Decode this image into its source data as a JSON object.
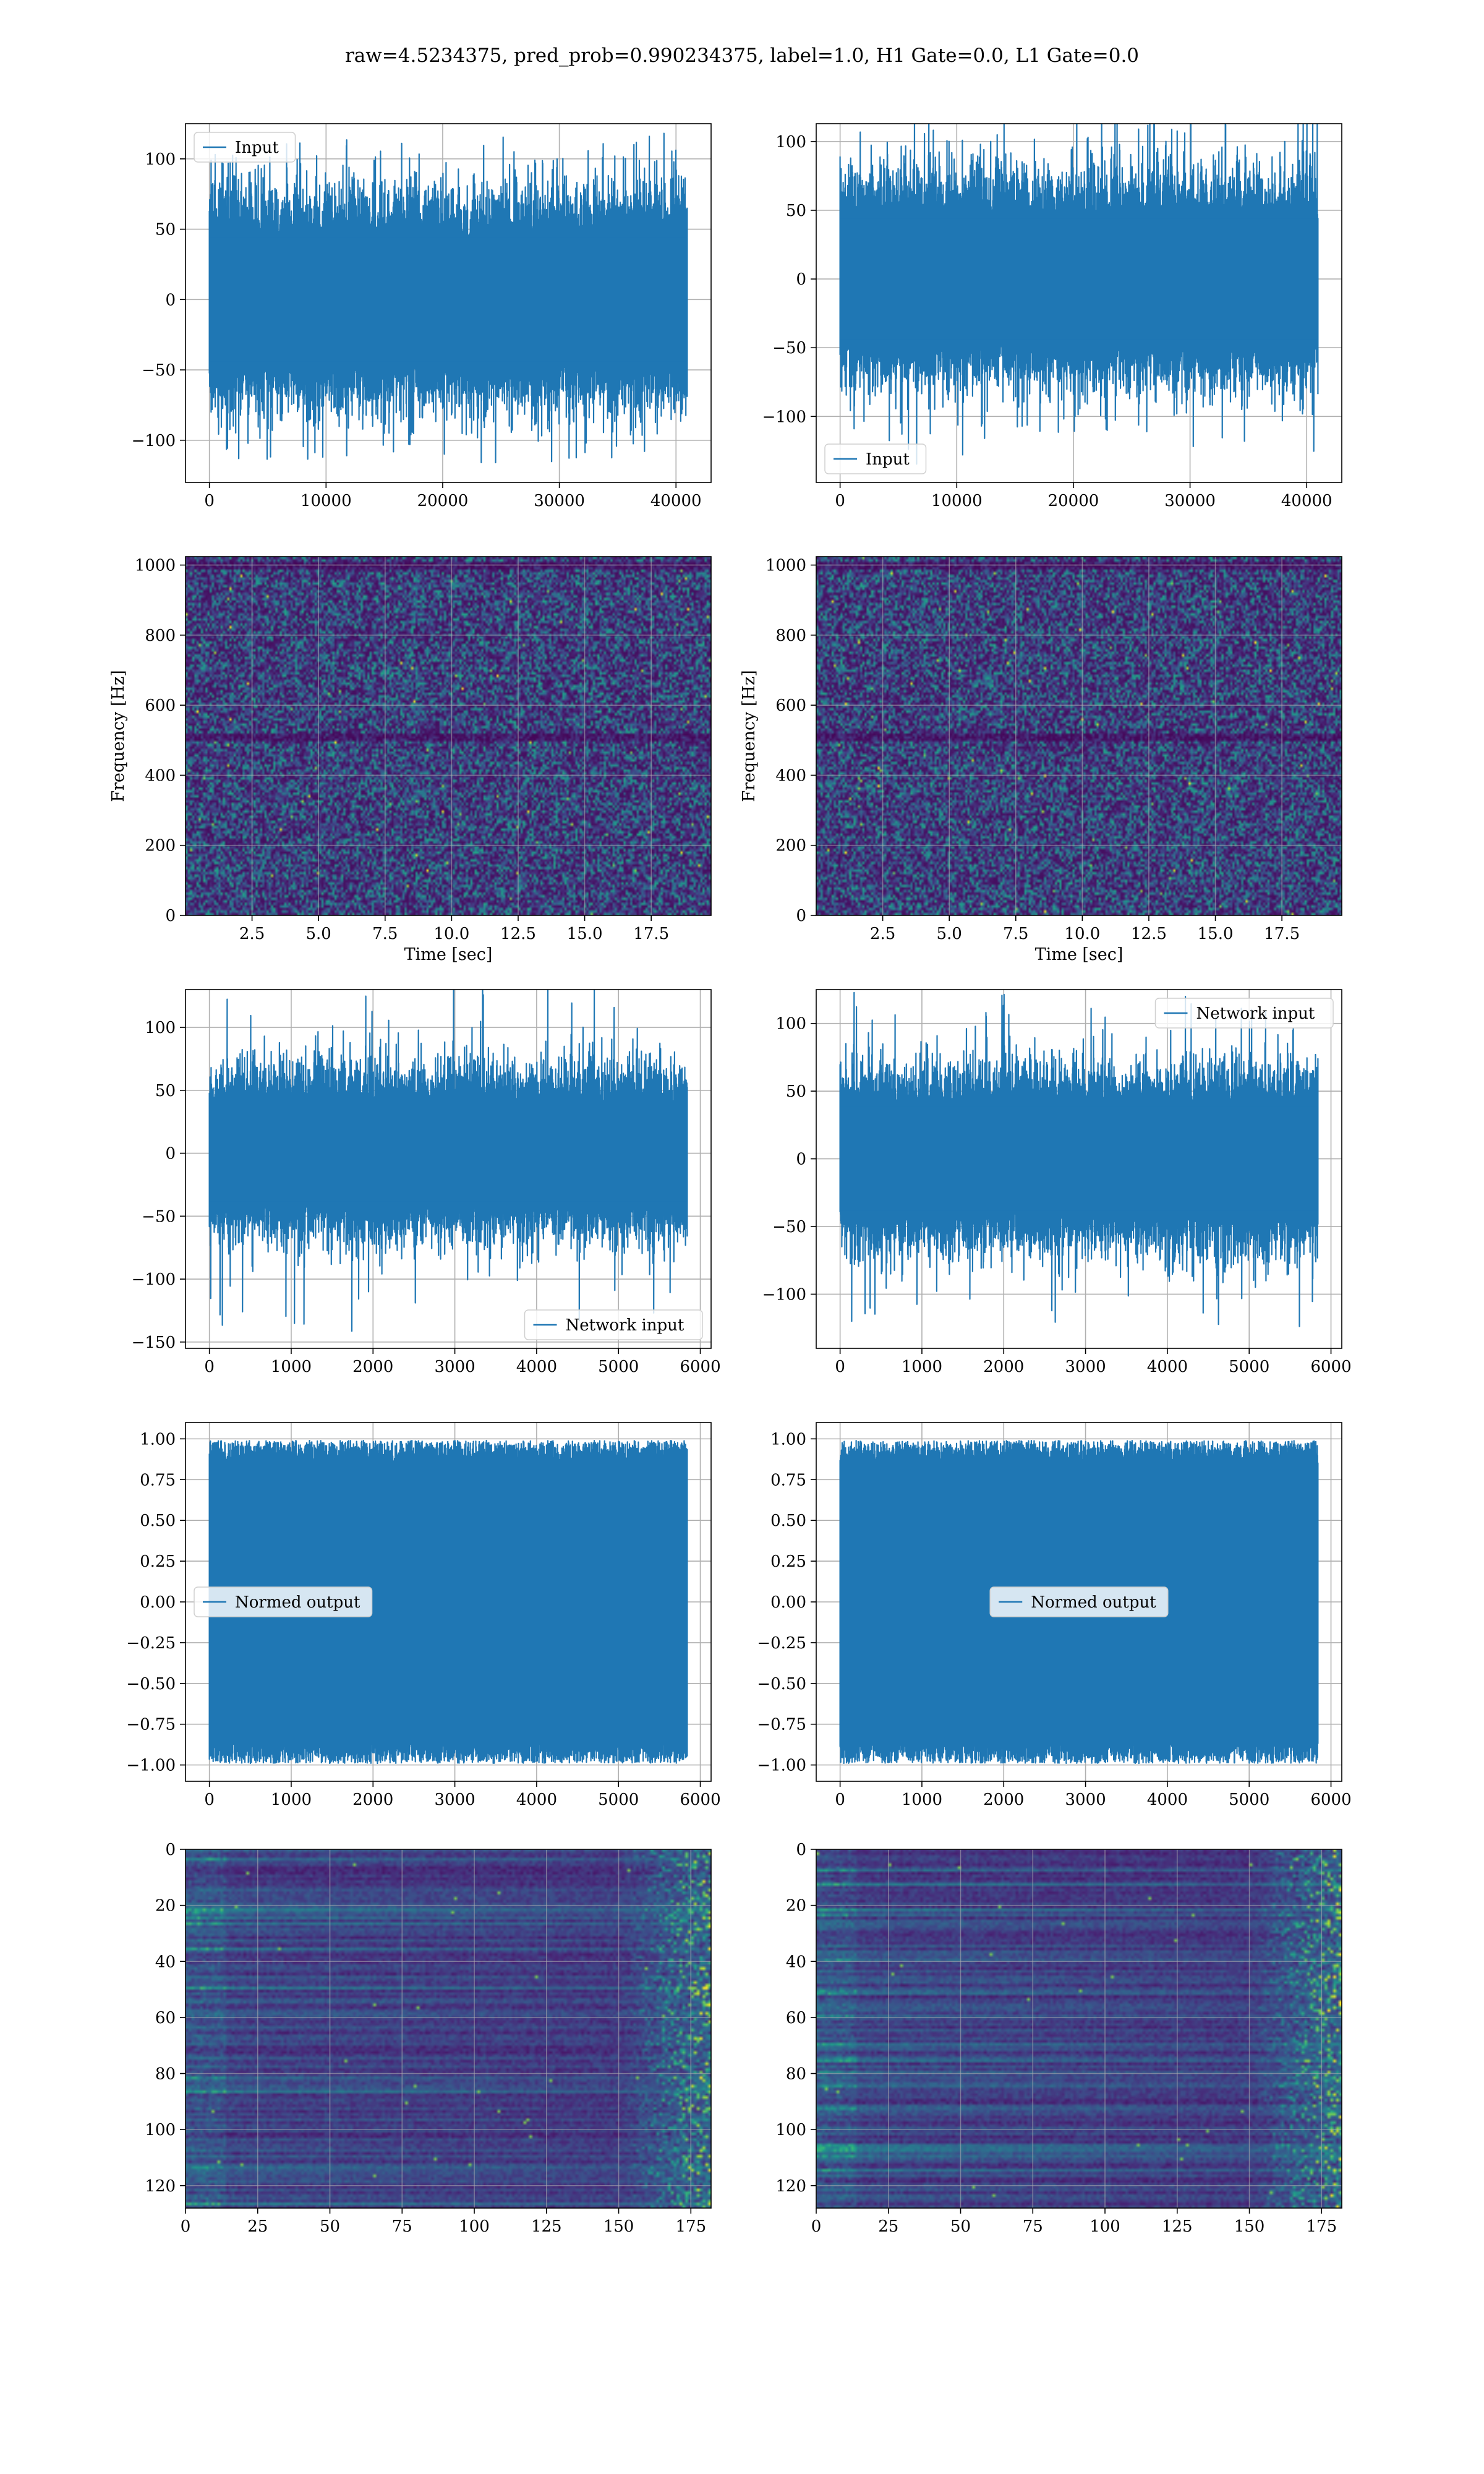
{
  "figure": {
    "suptitle": "raw=4.5234375, pred_prob=0.990234375, label=1.0, H1 Gate=0.0, L1 Gate=0.0"
  },
  "colors": {
    "line": "#1f77b4",
    "grid": "#b0b0b0"
  },
  "chart_data": [
    {
      "id": "input-h1",
      "type": "line",
      "series": [
        {
          "name": "Input",
          "kind": "noise",
          "length": 40960,
          "amplitude_typ": 40,
          "amplitude_peak": 118
        }
      ],
      "xlim": [
        -2048,
        43008
      ],
      "ylim": [
        -130,
        125
      ],
      "xticks": [
        0,
        10000,
        20000,
        30000,
        40000
      ],
      "yticks": [
        -100,
        -50,
        0,
        50,
        100
      ],
      "xlabel": "",
      "ylabel": "",
      "legend": "upper-left",
      "grid": true
    },
    {
      "id": "input-l1",
      "type": "line",
      "series": [
        {
          "name": "Input",
          "kind": "noise",
          "length": 40960,
          "amplitude_typ": 40,
          "amplitude_peak": 132
        }
      ],
      "xlim": [
        -2048,
        43008
      ],
      "ylim": [
        -148,
        113
      ],
      "xticks": [
        0,
        10000,
        20000,
        30000,
        40000
      ],
      "yticks": [
        -100,
        -50,
        0,
        50,
        100
      ],
      "xlabel": "",
      "ylabel": "",
      "legend": "lower-left",
      "grid": true
    },
    {
      "id": "spectrogram-h1",
      "type": "heatmap",
      "xlim": [
        0,
        19.75
      ],
      "ylim": [
        0,
        1024
      ],
      "xticks": [
        2.5,
        5.0,
        7.5,
        10.0,
        12.5,
        15.0,
        17.5
      ],
      "yticks": [
        0,
        200,
        400,
        600,
        800,
        1000
      ],
      "xlabel": "Time [sec]",
      "ylabel": "Frequency [Hz]",
      "grid": true,
      "colormap": "viridis",
      "dark_bands": [
        512,
        1000
      ]
    },
    {
      "id": "spectrogram-l1",
      "type": "heatmap",
      "xlim": [
        0,
        19.75
      ],
      "ylim": [
        0,
        1024
      ],
      "xticks": [
        2.5,
        5.0,
        7.5,
        10.0,
        12.5,
        15.0,
        17.5
      ],
      "yticks": [
        0,
        200,
        400,
        600,
        800,
        1000
      ],
      "xlabel": "Time [sec]",
      "ylabel": "Frequency [Hz]",
      "grid": true,
      "colormap": "viridis",
      "dark_bands": [
        512,
        1000
      ]
    },
    {
      "id": "network-input-h1",
      "type": "line",
      "series": [
        {
          "name": "Network input",
          "kind": "noise",
          "length": 5840,
          "amplitude_typ": 35,
          "amplitude_peak": 142
        }
      ],
      "xlim": [
        -292,
        6132
      ],
      "ylim": [
        -155,
        130
      ],
      "xticks": [
        0,
        1000,
        2000,
        3000,
        4000,
        5000,
        6000
      ],
      "yticks": [
        -150,
        -100,
        -50,
        0,
        50,
        100
      ],
      "xlabel": "",
      "ylabel": "",
      "legend": "lower-right",
      "grid": true
    },
    {
      "id": "network-input-l1",
      "type": "line",
      "series": [
        {
          "name": "Network input",
          "kind": "noise",
          "length": 5840,
          "amplitude_typ": 35,
          "amplitude_peak": 125
        }
      ],
      "xlim": [
        -292,
        6132
      ],
      "ylim": [
        -140,
        125
      ],
      "xticks": [
        0,
        1000,
        2000,
        3000,
        4000,
        5000,
        6000
      ],
      "yticks": [
        -100,
        -50,
        0,
        50,
        100
      ],
      "xlabel": "",
      "ylabel": "",
      "legend": "upper-right",
      "grid": true
    },
    {
      "id": "normed-output-h1",
      "type": "line",
      "series": [
        {
          "name": "Normed output",
          "kind": "bounded",
          "length": 5840,
          "bound": 0.99
        }
      ],
      "xlim": [
        -292,
        6132
      ],
      "ylim": [
        -1.1,
        1.1
      ],
      "xticks": [
        0,
        1000,
        2000,
        3000,
        4000,
        5000,
        6000
      ],
      "yticks": [
        -1.0,
        -0.75,
        -0.5,
        -0.25,
        0.0,
        0.25,
        0.5,
        0.75,
        1.0
      ],
      "xlabel": "",
      "ylabel": "",
      "legend": "center-left",
      "grid": true
    },
    {
      "id": "normed-output-l1",
      "type": "line",
      "series": [
        {
          "name": "Normed output",
          "kind": "bounded",
          "length": 5840,
          "bound": 0.99
        }
      ],
      "xlim": [
        -292,
        6132
      ],
      "ylim": [
        -1.1,
        1.1
      ],
      "xticks": [
        0,
        1000,
        2000,
        3000,
        4000,
        5000,
        6000
      ],
      "yticks": [
        -1.0,
        -0.75,
        -0.5,
        -0.25,
        0.0,
        0.25,
        0.5,
        0.75,
        1.0
      ],
      "xlabel": "",
      "ylabel": "",
      "legend": "center",
      "grid": true
    },
    {
      "id": "feature-map-h1",
      "type": "heatmap",
      "xlim": [
        0,
        182
      ],
      "ylim": [
        128,
        0
      ],
      "rows": 128,
      "cols": 182,
      "xticks": [
        0,
        25,
        50,
        75,
        100,
        125,
        150,
        175
      ],
      "yticks": [
        0,
        20,
        40,
        60,
        80,
        100,
        120
      ],
      "xlabel": "",
      "ylabel": "",
      "grid": true,
      "colormap": "viridis",
      "bright_from_col": 150
    },
    {
      "id": "feature-map-l1",
      "type": "heatmap",
      "xlim": [
        0,
        182
      ],
      "ylim": [
        128,
        0
      ],
      "rows": 128,
      "cols": 182,
      "xticks": [
        0,
        25,
        50,
        75,
        100,
        125,
        150,
        175
      ],
      "yticks": [
        0,
        20,
        40,
        60,
        80,
        100,
        120
      ],
      "xlabel": "",
      "ylabel": "",
      "grid": true,
      "colormap": "viridis",
      "bright_from_col": 150
    }
  ]
}
